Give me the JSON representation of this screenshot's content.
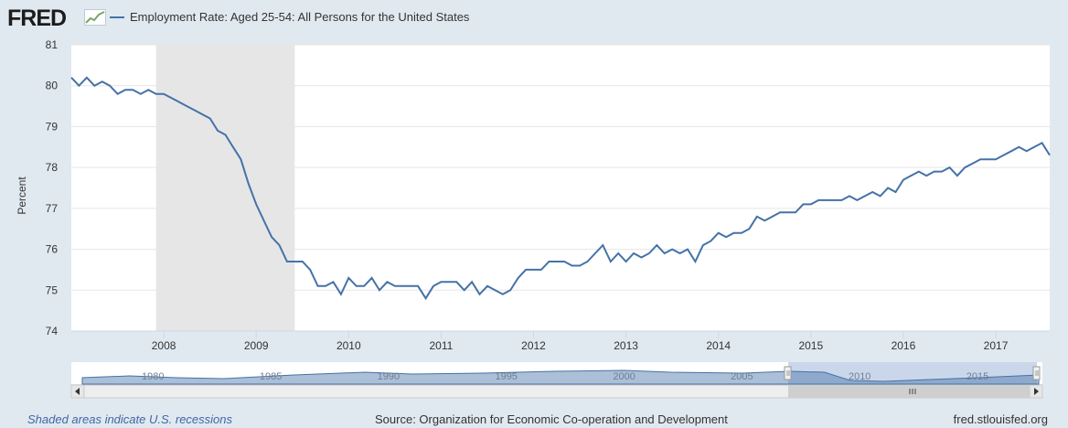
{
  "logo_text": "FRED",
  "chart_data": {
    "type": "line",
    "title": "Employment Rate: Aged 25-54: All Persons for the United States",
    "ylabel": "Percent",
    "xlabel": "",
    "ylim": [
      74,
      81
    ],
    "yticks": [
      "74",
      "75",
      "76",
      "77",
      "78",
      "79",
      "80",
      "81"
    ],
    "xticks": [
      "2008",
      "2009",
      "2010",
      "2011",
      "2012",
      "2013",
      "2014",
      "2015",
      "2016",
      "2017"
    ],
    "grid": true,
    "recession": {
      "start": "2007-12",
      "end": "2009-06"
    },
    "series": [
      {
        "name": "Employment Rate: Aged 25-54: All Persons for the United States",
        "color": "#4572a7",
        "x": [
          "2007-01",
          "2007-02",
          "2007-03",
          "2007-04",
          "2007-05",
          "2007-06",
          "2007-07",
          "2007-08",
          "2007-09",
          "2007-10",
          "2007-11",
          "2007-12",
          "2008-01",
          "2008-02",
          "2008-03",
          "2008-04",
          "2008-05",
          "2008-06",
          "2008-07",
          "2008-08",
          "2008-09",
          "2008-10",
          "2008-11",
          "2008-12",
          "2009-01",
          "2009-02",
          "2009-03",
          "2009-04",
          "2009-05",
          "2009-06",
          "2009-07",
          "2009-08",
          "2009-09",
          "2009-10",
          "2009-11",
          "2009-12",
          "2010-01",
          "2010-02",
          "2010-03",
          "2010-04",
          "2010-05",
          "2010-06",
          "2010-07",
          "2010-08",
          "2010-09",
          "2010-10",
          "2010-11",
          "2010-12",
          "2011-01",
          "2011-02",
          "2011-03",
          "2011-04",
          "2011-05",
          "2011-06",
          "2011-07",
          "2011-08",
          "2011-09",
          "2011-10",
          "2011-11",
          "2011-12",
          "2012-01",
          "2012-02",
          "2012-03",
          "2012-04",
          "2012-05",
          "2012-06",
          "2012-07",
          "2012-08",
          "2012-09",
          "2012-10",
          "2012-11",
          "2012-12",
          "2013-01",
          "2013-02",
          "2013-03",
          "2013-04",
          "2013-05",
          "2013-06",
          "2013-07",
          "2013-08",
          "2013-09",
          "2013-10",
          "2013-11",
          "2013-12",
          "2014-01",
          "2014-02",
          "2014-03",
          "2014-04",
          "2014-05",
          "2014-06",
          "2014-07",
          "2014-08",
          "2014-09",
          "2014-10",
          "2014-11",
          "2014-12",
          "2015-01",
          "2015-02",
          "2015-03",
          "2015-04",
          "2015-05",
          "2015-06",
          "2015-07",
          "2015-08",
          "2015-09",
          "2015-10",
          "2015-11",
          "2015-12",
          "2016-01",
          "2016-02",
          "2016-03",
          "2016-04",
          "2016-05",
          "2016-06",
          "2016-07",
          "2016-08",
          "2016-09",
          "2016-10",
          "2016-11",
          "2016-12",
          "2017-01",
          "2017-02",
          "2017-03",
          "2017-04",
          "2017-05",
          "2017-06",
          "2017-07",
          "2017-08"
        ],
        "values": [
          80.2,
          80.0,
          80.2,
          80.0,
          80.1,
          80.0,
          79.8,
          79.9,
          79.9,
          79.8,
          79.9,
          79.8,
          79.8,
          79.7,
          79.6,
          79.5,
          79.4,
          79.3,
          79.2,
          78.9,
          78.8,
          78.5,
          78.2,
          77.6,
          77.1,
          76.7,
          76.3,
          76.1,
          75.7,
          75.7,
          75.7,
          75.5,
          75.1,
          75.1,
          75.2,
          74.9,
          75.3,
          75.1,
          75.1,
          75.3,
          75.0,
          75.2,
          75.1,
          75.1,
          75.1,
          75.1,
          74.8,
          75.1,
          75.2,
          75.2,
          75.2,
          75.0,
          75.2,
          74.9,
          75.1,
          75.0,
          74.9,
          75.0,
          75.3,
          75.5,
          75.5,
          75.5,
          75.7,
          75.7,
          75.7,
          75.6,
          75.6,
          75.7,
          75.9,
          76.1,
          75.7,
          75.9,
          75.7,
          75.9,
          75.8,
          75.9,
          76.1,
          75.9,
          76.0,
          75.9,
          76.0,
          75.7,
          76.1,
          76.2,
          76.4,
          76.3,
          76.4,
          76.4,
          76.5,
          76.8,
          76.7,
          76.8,
          76.9,
          76.9,
          76.9,
          77.1,
          77.1,
          77.2,
          77.2,
          77.2,
          77.2,
          77.3,
          77.2,
          77.3,
          77.4,
          77.3,
          77.5,
          77.4,
          77.7,
          77.8,
          77.9,
          77.8,
          77.9,
          77.9,
          78.0,
          77.8,
          78.0,
          78.1,
          78.2,
          78.2,
          78.2,
          78.3,
          78.4,
          78.5,
          78.4,
          78.5,
          78.6,
          78.3
        ]
      }
    ],
    "navigator": {
      "labels": [
        "1980",
        "1985",
        "1990",
        "1995",
        "2000",
        "2005",
        "2010",
        "2015"
      ]
    }
  },
  "footer": {
    "recession_note": "Shaded areas indicate U.S. recessions",
    "source": "Source: Organization for Economic Co-operation and Development",
    "site": "fred.stlouisfed.org"
  },
  "colors": {
    "line": "#4572a7",
    "recession": "#e6e6e6",
    "background": "#e1e9f0",
    "plot": "#ffffff"
  },
  "icons": {
    "logo_graph": "graph-icon",
    "scroll_left": "left-arrow-icon",
    "scroll_right": "right-arrow-icon",
    "scrollbar_grip": "grip-icon",
    "nav_handle": "handle-icon"
  }
}
